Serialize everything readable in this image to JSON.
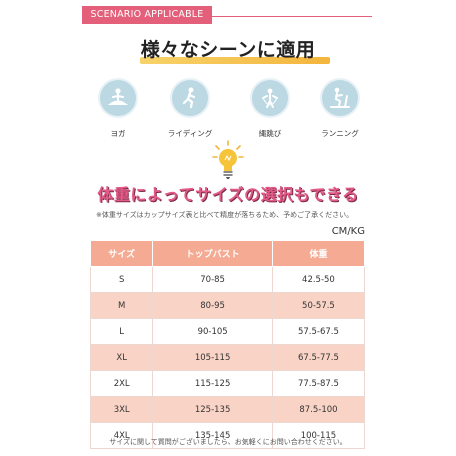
{
  "header": {
    "tag": "SCENARIO APPLICABLE",
    "title": "様々なシーンに適用"
  },
  "scenes": [
    {
      "label": "ヨガ",
      "icon": "yoga-icon"
    },
    {
      "label": "ライディング",
      "icon": "riding-icon"
    },
    {
      "label": "縄跳び",
      "icon": "jump-rope-icon"
    },
    {
      "label": "ランニング",
      "icon": "running-machine-icon"
    }
  ],
  "subtitle": "体重によってサイズの選択もできる",
  "note": "※体重サイズはカップサイズ表と比べて精度が落ちるため、予めご了承ください。",
  "unit": "CM/KG",
  "table": {
    "headers": [
      "サイズ",
      "トップバスト",
      "体重"
    ],
    "rows": [
      [
        "S",
        "70-85",
        "42.5-50"
      ],
      [
        "M",
        "80-95",
        "50-57.5"
      ],
      [
        "L",
        "90-105",
        "57.5-67.5"
      ],
      [
        "XL",
        "105-115",
        "67.5-77.5"
      ],
      [
        "2XL",
        "115-125",
        "77.5-87.5"
      ],
      [
        "3XL",
        "125-135",
        "87.5-100"
      ],
      [
        "4XL",
        "135-145",
        "100-115"
      ]
    ]
  },
  "footer": "サイズに関して質問がございましたら、お気軽くにお問い合わせください。",
  "colors": {
    "accent": "#e4607a",
    "header_row": "#f5ab93",
    "alt_row": "#f9d4c6",
    "icon_circle": "#bcd9e3"
  }
}
